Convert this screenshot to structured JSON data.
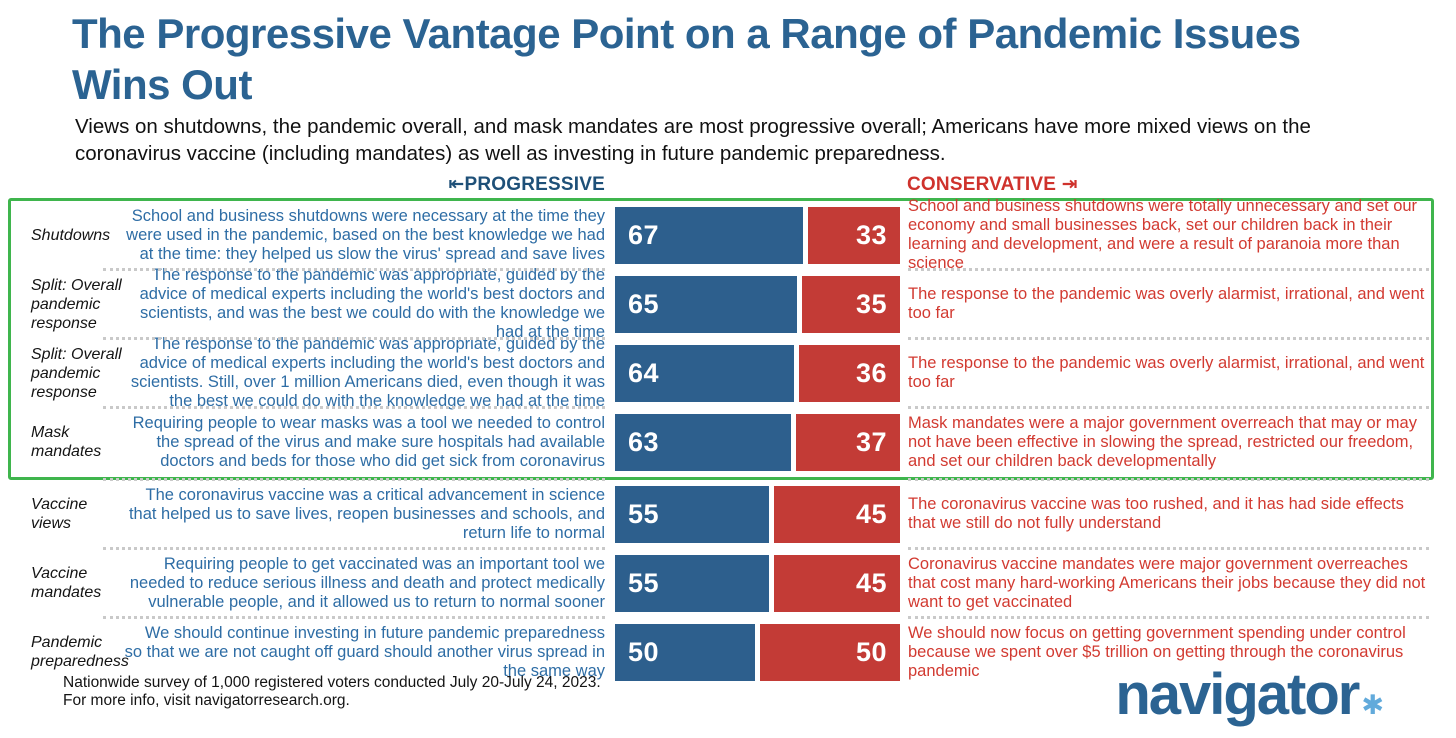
{
  "title_lines": [
    "The Progressive Vantage Point on a Range of Pandemic Issues",
    "Wins Out"
  ],
  "subtitle": "Views on shutdowns, the pandemic overall, and mask mandates are most progressive overall; Americans have more mixed views on the coronavirus vaccine (including mandates) as well as investing in future pandemic preparedness.",
  "axis": {
    "progressive_label": "PROGRESSIVE",
    "conservative_label": "CONSERVATIVE",
    "progressive_arrow": "⇤",
    "conservative_arrow": "⇥"
  },
  "colors": {
    "title_blue": "#2b6392",
    "progressive_bar": "#2d5f8d",
    "conservative_bar": "#c33b36",
    "progressive_text": "#2e6da5",
    "conservative_text": "#d23a31",
    "highlight_green": "#3fb54d"
  },
  "chart_data": {
    "type": "bar",
    "orientation": "horizontal-paired",
    "title": "The Progressive Vantage Point on a Range of Pandemic Issues Wins Out",
    "xlim": [
      0,
      100
    ],
    "series": [
      {
        "name": "Progressive",
        "color": "#2d5f8d"
      },
      {
        "name": "Conservative",
        "color": "#c33b36"
      }
    ],
    "highlight_note": "Green box surrounds the four most progressive rows (Shutdowns, both Split: Overall pandemic response rows, Mask mandates)",
    "rows": [
      {
        "category": "Shutdowns",
        "progressive_value": 67,
        "conservative_value": 33,
        "highlighted": true,
        "progressive_statement": "School and business shutdowns were necessary at the time they were used in the pandemic, based on the best knowledge we had at the time: they helped us slow the virus' spread and save lives",
        "conservative_statement": "School and business shutdowns were totally unnecessary and set our economy and small businesses back, set our children back in their learning and development, and were a result of paranoia more than science"
      },
      {
        "category": "Split: Overall pandemic response",
        "progressive_value": 65,
        "conservative_value": 35,
        "highlighted": true,
        "progressive_statement": "The response to the pandemic was appropriate, guided by the advice of medical experts including the world's best doctors and scientists, and was the best we could do with the knowledge we had at the time",
        "conservative_statement": "The response to the pandemic was overly alarmist, irrational, and went too far"
      },
      {
        "category": "Split: Overall pandemic response",
        "progressive_value": 64,
        "conservative_value": 36,
        "highlighted": true,
        "progressive_statement": "The response to the pandemic was appropriate, guided by the advice of medical experts including the world's best doctors and scientists. Still, over 1 million Americans died, even though it was the best we could do with the knowledge we had at the time",
        "conservative_statement": "The response to the pandemic was overly alarmist, irrational, and went too far"
      },
      {
        "category": "Mask mandates",
        "progressive_value": 63,
        "conservative_value": 37,
        "highlighted": true,
        "progressive_statement": "Requiring people to wear masks was a tool we needed to control the spread of the virus and make sure hospitals had available doctors and beds for those who did get sick from coronavirus",
        "conservative_statement": "Mask mandates were a major government overreach that may or may not have been effective in slowing the spread, restricted our freedom, and set our children back developmentally"
      },
      {
        "category": "Vaccine views",
        "progressive_value": 55,
        "conservative_value": 45,
        "highlighted": false,
        "progressive_statement": "The coronavirus vaccine was a critical advancement in science that helped us to save lives, reopen businesses and schools, and return life to normal",
        "conservative_statement": "The coronavirus vaccine was too rushed, and it has had side effects that we still do not fully understand"
      },
      {
        "category": "Vaccine mandates",
        "progressive_value": 55,
        "conservative_value": 45,
        "highlighted": false,
        "progressive_statement": "Requiring people to get vaccinated was an important tool we needed to reduce serious illness and death and protect medically vulnerable people, and it allowed us to return to normal sooner",
        "conservative_statement": "Coronavirus vaccine mandates were major government overreaches that cost many hard-working Americans their jobs because they did not want to get vaccinated"
      },
      {
        "category": "Pandemic preparedness",
        "progressive_value": 50,
        "conservative_value": 50,
        "highlighted": false,
        "progressive_statement": "We should continue investing in future pandemic preparedness so that we are not caught off guard should another virus spread in the same way",
        "conservative_statement": "We should now focus on getting government spending under control because we spent over $5 trillion on getting through the coronavirus pandemic"
      }
    ]
  },
  "footer": {
    "line1": "Nationwide survey of 1,000 registered voters conducted July 20-July 24, 2023.",
    "line2": "For more info, visit navigatorresearch.org."
  },
  "logo": {
    "text": "navigator",
    "mark": "✱"
  }
}
